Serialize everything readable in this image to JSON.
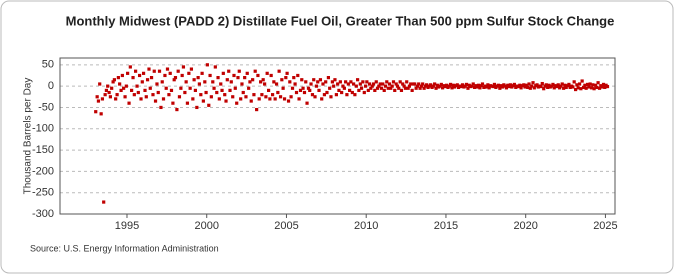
{
  "chart_data": {
    "type": "scatter",
    "title": "Monthly Midwest (PADD 2) Distillate Fuel Oil, Greater Than 500 ppm Sulfur Stock Change",
    "y_label": "Thousand Barrels per Day",
    "source": "Source: U.S. Energy Information Administration",
    "color": "#c00000",
    "grid": true,
    "xlim": [
      1990.8,
      2025.6
    ],
    "xticks": [
      1995,
      2000,
      2005,
      2010,
      2015,
      2020,
      2025
    ],
    "ylim": [
      -300,
      66
    ],
    "yticks": [
      -300,
      -250,
      -200,
      -150,
      -100,
      -50,
      0,
      50
    ],
    "x": [
      1993.04,
      1993.13,
      1993.21,
      1993.29,
      1993.38,
      1993.46,
      1993.54,
      1993.63,
      1993.71,
      1993.79,
      1993.88,
      1993.96,
      1994.04,
      1994.13,
      1994.21,
      1994.29,
      1994.38,
      1994.46,
      1994.54,
      1994.63,
      1994.71,
      1994.79,
      1994.88,
      1994.96,
      1995.04,
      1995.13,
      1995.21,
      1995.29,
      1995.38,
      1995.46,
      1995.54,
      1995.63,
      1995.71,
      1995.79,
      1995.88,
      1995.96,
      1996.04,
      1996.13,
      1996.21,
      1996.29,
      1996.38,
      1996.46,
      1996.54,
      1996.63,
      1996.71,
      1996.79,
      1996.88,
      1996.96,
      1997.04,
      1997.13,
      1997.21,
      1997.29,
      1997.38,
      1997.46,
      1997.54,
      1997.63,
      1997.71,
      1997.79,
      1997.88,
      1997.96,
      1998.04,
      1998.13,
      1998.21,
      1998.29,
      1998.38,
      1998.46,
      1998.54,
      1998.63,
      1998.71,
      1998.79,
      1998.88,
      1998.96,
      1999.04,
      1999.13,
      1999.21,
      1999.29,
      1999.38,
      1999.46,
      1999.54,
      1999.63,
      1999.71,
      1999.79,
      1999.88,
      1999.96,
      2000.04,
      2000.13,
      2000.21,
      2000.29,
      2000.38,
      2000.46,
      2000.54,
      2000.63,
      2000.71,
      2000.79,
      2000.88,
      2000.96,
      2001.04,
      2001.13,
      2001.21,
      2001.29,
      2001.38,
      2001.46,
      2001.54,
      2001.63,
      2001.71,
      2001.79,
      2001.88,
      2001.96,
      2002.04,
      2002.13,
      2002.21,
      2002.29,
      2002.38,
      2002.46,
      2002.54,
      2002.63,
      2002.71,
      2002.79,
      2002.88,
      2002.96,
      2003.04,
      2003.13,
      2003.21,
      2003.29,
      2003.38,
      2003.46,
      2003.54,
      2003.63,
      2003.71,
      2003.79,
      2003.88,
      2003.96,
      2004.04,
      2004.13,
      2004.21,
      2004.29,
      2004.38,
      2004.46,
      2004.54,
      2004.63,
      2004.71,
      2004.79,
      2004.88,
      2004.96,
      2005.04,
      2005.13,
      2005.21,
      2005.29,
      2005.38,
      2005.46,
      2005.54,
      2005.63,
      2005.71,
      2005.79,
      2005.88,
      2005.96,
      2006.04,
      2006.13,
      2006.21,
      2006.29,
      2006.38,
      2006.46,
      2006.54,
      2006.63,
      2006.71,
      2006.79,
      2006.88,
      2006.96,
      2007.04,
      2007.13,
      2007.21,
      2007.29,
      2007.38,
      2007.46,
      2007.54,
      2007.63,
      2007.71,
      2007.79,
      2007.88,
      2007.96,
      2008.04,
      2008.13,
      2008.21,
      2008.29,
      2008.38,
      2008.46,
      2008.54,
      2008.63,
      2008.71,
      2008.79,
      2008.88,
      2008.96,
      2009.04,
      2009.13,
      2009.21,
      2009.29,
      2009.38,
      2009.46,
      2009.54,
      2009.63,
      2009.71,
      2009.79,
      2009.88,
      2009.96,
      2010.04,
      2010.13,
      2010.21,
      2010.29,
      2010.38,
      2010.46,
      2010.54,
      2010.63,
      2010.71,
      2010.79,
      2010.88,
      2010.96,
      2011.04,
      2011.13,
      2011.21,
      2011.29,
      2011.38,
      2011.46,
      2011.54,
      2011.63,
      2011.71,
      2011.79,
      2011.88,
      2011.96,
      2012.04,
      2012.13,
      2012.21,
      2012.29,
      2012.38,
      2012.46,
      2012.54,
      2012.63,
      2012.71,
      2012.79,
      2012.88,
      2012.96,
      2013.04,
      2013.13,
      2013.21,
      2013.29,
      2013.38,
      2013.46,
      2013.54,
      2013.63,
      2013.71,
      2013.79,
      2013.88,
      2013.96,
      2014.04,
      2014.13,
      2014.21,
      2014.29,
      2014.38,
      2014.46,
      2014.54,
      2014.63,
      2014.71,
      2014.79,
      2014.88,
      2014.96,
      2015.04,
      2015.13,
      2015.21,
      2015.29,
      2015.38,
      2015.46,
      2015.54,
      2015.63,
      2015.71,
      2015.79,
      2015.88,
      2015.96,
      2016.04,
      2016.13,
      2016.21,
      2016.29,
      2016.38,
      2016.46,
      2016.54,
      2016.63,
      2016.71,
      2016.79,
      2016.88,
      2016.96,
      2017.04,
      2017.13,
      2017.21,
      2017.29,
      2017.38,
      2017.46,
      2017.54,
      2017.63,
      2017.71,
      2017.79,
      2017.88,
      2017.96,
      2018.04,
      2018.13,
      2018.21,
      2018.29,
      2018.38,
      2018.46,
      2018.54,
      2018.63,
      2018.71,
      2018.79,
      2018.88,
      2018.96,
      2019.04,
      2019.13,
      2019.21,
      2019.29,
      2019.38,
      2019.46,
      2019.54,
      2019.63,
      2019.71,
      2019.79,
      2019.88,
      2019.96,
      2020.04,
      2020.13,
      2020.21,
      2020.29,
      2020.38,
      2020.46,
      2020.54,
      2020.63,
      2020.71,
      2020.79,
      2020.88,
      2020.96,
      2021.04,
      2021.13,
      2021.21,
      2021.29,
      2021.38,
      2021.46,
      2021.54,
      2021.63,
      2021.71,
      2021.79,
      2021.88,
      2021.96,
      2022.04,
      2022.13,
      2022.21,
      2022.29,
      2022.38,
      2022.46,
      2022.54,
      2022.63,
      2022.71,
      2022.79,
      2022.88,
      2022.96,
      2023.04,
      2023.13,
      2023.21,
      2023.29,
      2023.38,
      2023.46,
      2023.54,
      2023.63,
      2023.71,
      2023.79,
      2023.88,
      2023.96,
      2024.04,
      2024.13,
      2024.21,
      2024.29,
      2024.38,
      2024.46,
      2024.54,
      2024.63,
      2024.71,
      2024.79,
      2024.88,
      2024.96,
      2025.04,
      2025.13
    ],
    "values": [
      -60,
      -25,
      -35,
      5,
      -65,
      -30,
      -272,
      -20,
      -10,
      0,
      -15,
      -25,
      -5,
      10,
      15,
      -30,
      -20,
      20,
      5,
      -10,
      25,
      -5,
      -25,
      0,
      30,
      -40,
      45,
      -10,
      20,
      -20,
      35,
      0,
      -15,
      25,
      -30,
      10,
      30,
      -10,
      -25,
      15,
      40,
      -5,
      20,
      -20,
      35,
      -35,
      5,
      -15,
      35,
      -50,
      10,
      -30,
      25,
      -5,
      40,
      -20,
      30,
      -10,
      -40,
      15,
      20,
      -55,
      35,
      -25,
      -5,
      25,
      45,
      -15,
      10,
      -40,
      30,
      -5,
      40,
      -30,
      15,
      -10,
      -50,
      20,
      5,
      -20,
      30,
      -35,
      10,
      -15,
      50,
      -45,
      25,
      -25,
      10,
      -5,
      45,
      -15,
      20,
      -30,
      5,
      -10,
      30,
      -20,
      -35,
      15,
      35,
      -10,
      10,
      -25,
      25,
      -5,
      -40,
      20,
      35,
      -30,
      5,
      -15,
      20,
      -25,
      30,
      -5,
      10,
      -35,
      15,
      -20,
      35,
      -55,
      25,
      -30,
      10,
      -20,
      15,
      5,
      -25,
      30,
      -10,
      -30,
      25,
      -20,
      10,
      -30,
      5,
      -15,
      35,
      -25,
      15,
      -5,
      -30,
      20,
      30,
      -35,
      10,
      -25,
      -5,
      20,
      5,
      -15,
      25,
      -30,
      -10,
      15,
      -5,
      -15,
      10,
      -40,
      -5,
      -10,
      5,
      -20,
      15,
      -25,
      0,
      10,
      -10,
      15,
      -30,
      5,
      -20,
      10,
      -15,
      20,
      -5,
      -25,
      10,
      0,
      15,
      -20,
      5,
      -10,
      10,
      -15,
      0,
      -5,
      10,
      -20,
      5,
      -10,
      10,
      -15,
      5,
      -20,
      0,
      15,
      -10,
      5,
      -5,
      10,
      -15,
      0,
      10,
      -10,
      5,
      -5,
      0,
      5,
      -10,
      10,
      -5,
      0,
      5,
      -5,
      5,
      -10,
      0,
      10,
      -5,
      5,
      -5,
      0,
      10,
      -10,
      5,
      0,
      -5,
      10,
      -10,
      5,
      0,
      -5,
      10,
      -5,
      0,
      5,
      -10,
      5,
      5,
      -5,
      0,
      5,
      -5,
      0,
      5,
      -5,
      0,
      3,
      -3,
      0,
      3,
      -3,
      0,
      5,
      -5,
      2,
      -2,
      0,
      4,
      -4,
      1,
      -1,
      2,
      -3,
      0,
      4,
      -4,
      2,
      -2,
      1,
      3,
      -3,
      0,
      -1,
      3,
      -2,
      0,
      4,
      -5,
      2,
      -1,
      0,
      5,
      -3,
      1,
      -2,
      2,
      -4,
      1,
      5,
      -3,
      0,
      -2,
      3,
      -4,
      1,
      0,
      -1,
      4,
      -3,
      0,
      2,
      -5,
      1,
      -2,
      3,
      0,
      -4,
      2,
      -1,
      3,
      -2,
      1,
      4,
      -3,
      0,
      -1,
      2,
      -4,
      1,
      3,
      -2,
      2,
      -3,
      5,
      -5,
      0,
      8,
      -4,
      1,
      3,
      -2,
      0,
      -1,
      6,
      -6,
      0,
      3,
      -3,
      2,
      -2,
      0,
      4,
      -4,
      1,
      -1,
      3,
      -4,
      0,
      5,
      -5,
      2,
      -3,
      1,
      4,
      -3,
      0,
      -2,
      10,
      -8,
      3,
      -4,
      5,
      -6,
      12,
      -3,
      2,
      -5,
      4,
      -2,
      5,
      -4,
      3,
      -6,
      2,
      -3,
      8,
      -5,
      1,
      -2,
      4,
      -3,
      2,
      -1
    ]
  }
}
